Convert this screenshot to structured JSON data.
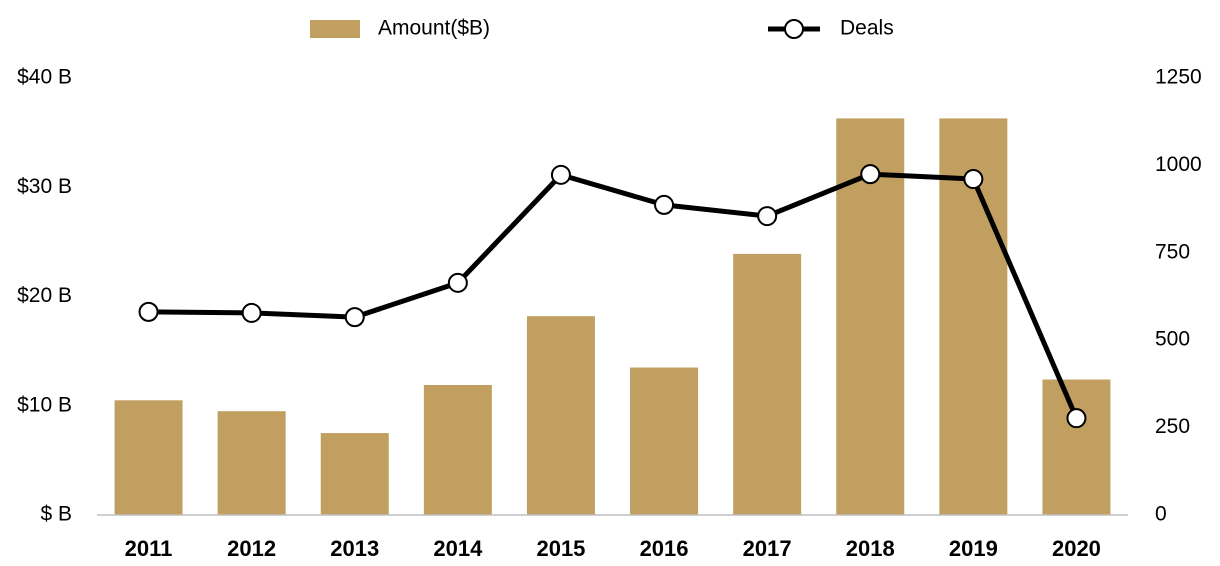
{
  "chart_data": {
    "type": "bar",
    "categories": [
      "2011",
      "2012",
      "2013",
      "2014",
      "2015",
      "2016",
      "2017",
      "2018",
      "2019",
      "2020"
    ],
    "series": [
      {
        "name": "Amount($B)",
        "type": "bar",
        "color": "#c09f60",
        "values": [
          10.5,
          9.5,
          7.5,
          11.9,
          18.2,
          13.5,
          23.9,
          36.3,
          36.3,
          12.4
        ]
      },
      {
        "name": "Deals",
        "type": "line",
        "axis": "y2",
        "color": "#000000",
        "values": [
          581,
          578,
          566,
          664,
          973,
          887,
          855,
          975,
          961,
          277
        ]
      }
    ],
    "ylim": [
      0,
      40
    ],
    "yticks": [
      {
        "value": 0,
        "label": "$ B"
      },
      {
        "value": 10,
        "label": "$10 B"
      },
      {
        "value": 20,
        "label": "$20 B"
      },
      {
        "value": 30,
        "label": "$30 B"
      },
      {
        "value": 40,
        "label": "$40 B"
      }
    ],
    "y2lim": [
      0,
      1250
    ],
    "y2ticks": [
      0,
      250,
      500,
      750,
      1000,
      1250
    ],
    "legend": "top"
  }
}
